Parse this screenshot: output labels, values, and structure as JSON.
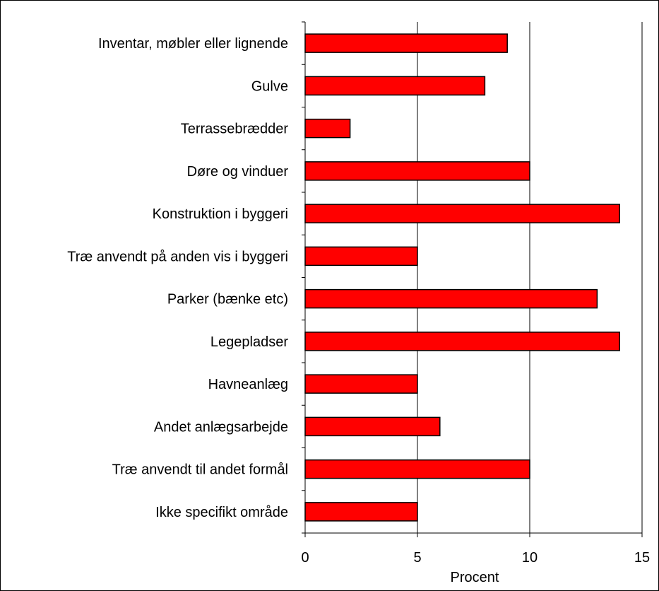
{
  "chart_data": {
    "type": "bar",
    "orientation": "horizontal",
    "categories": [
      "Inventar, møbler eller lignende",
      "Gulve",
      "Terrassebrædder",
      "Døre og vinduer",
      "Konstruktion i byggeri",
      "Træ anvendt på anden vis i byggeri",
      "Parker (bænke etc)",
      "Legepladser",
      "Havneanlæg",
      "Andet anlægsarbejde",
      "Træ anvendt til andet formål",
      "Ikke specifikt område"
    ],
    "values": [
      9,
      8,
      2,
      10,
      14,
      5,
      13,
      14,
      5,
      6,
      10,
      5
    ],
    "xlabel": "Procent",
    "ylabel": "",
    "xlim": [
      0,
      15
    ],
    "xticks": [
      "0",
      "5",
      "10",
      "15"
    ],
    "grid": "vertical major gridlines",
    "legend": "none",
    "bar_color": "#ff0000",
    "bar_edge_color": "#000000"
  }
}
